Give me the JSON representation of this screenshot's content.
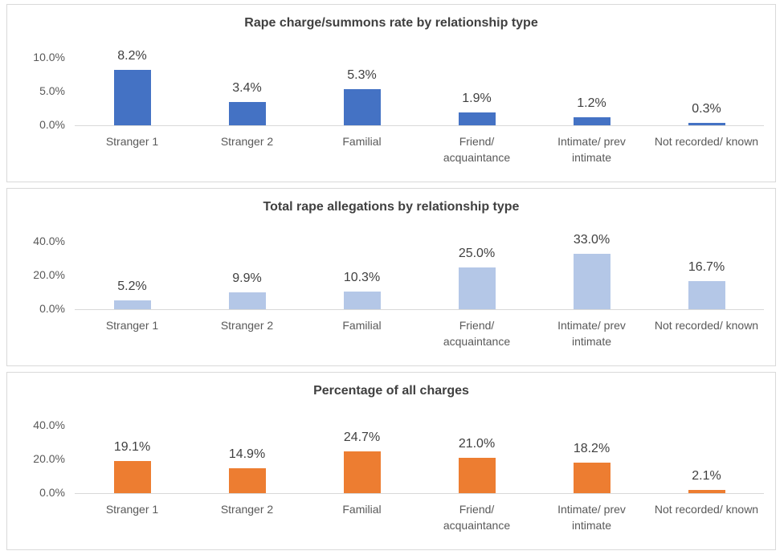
{
  "chart_data": [
    {
      "type": "bar",
      "title": "Rape charge/summons rate by relationship type",
      "categories": [
        "Stranger 1",
        "Stranger 2",
        "Familial",
        "Friend/ acquaintance",
        "Intimate/ prev intimate",
        "Not recorded/ known"
      ],
      "values": [
        8.2,
        3.4,
        5.3,
        1.9,
        1.2,
        0.3
      ],
      "value_labels": [
        "8.2%",
        "3.4%",
        "5.3%",
        "1.9%",
        "1.2%",
        "0.3%"
      ],
      "color": "#4472c4",
      "ylim": [
        0,
        10
      ],
      "yticks": [
        {
          "value": 0,
          "label": "0.0%"
        },
        {
          "value": 5,
          "label": "5.0%"
        },
        {
          "value": 10,
          "label": "10.0%"
        }
      ],
      "grid": false
    },
    {
      "type": "bar",
      "title": "Total rape allegations by relationship type",
      "categories": [
        "Stranger 1",
        "Stranger 2",
        "Familial",
        "Friend/ acquaintance",
        "Intimate/ prev intimate",
        "Not recorded/ known"
      ],
      "values": [
        5.2,
        9.9,
        10.3,
        25.0,
        33.0,
        16.7
      ],
      "value_labels": [
        "5.2%",
        "9.9%",
        "10.3%",
        "25.0%",
        "33.0%",
        "16.7%"
      ],
      "color": "#b4c7e7",
      "ylim": [
        0,
        40
      ],
      "yticks": [
        {
          "value": 0,
          "label": "0.0%"
        },
        {
          "value": 20,
          "label": "20.0%"
        },
        {
          "value": 40,
          "label": "40.0%"
        }
      ],
      "grid": false
    },
    {
      "type": "bar",
      "title": "Percentage of all charges",
      "categories": [
        "Stranger 1",
        "Stranger 2",
        "Familial",
        "Friend/ acquaintance",
        "Intimate/ prev intimate",
        "Not recorded/ known"
      ],
      "values": [
        19.1,
        14.9,
        24.7,
        21.0,
        18.2,
        2.1
      ],
      "value_labels": [
        "19.1%",
        "14.9%",
        "24.7%",
        "21.0%",
        "18.2%",
        "2.1%"
      ],
      "color": "#ed7d31",
      "ylim": [
        0,
        40
      ],
      "yticks": [
        {
          "value": 0,
          "label": "0.0%"
        },
        {
          "value": 20,
          "label": "20.0%"
        },
        {
          "value": 40,
          "label": "40.0%"
        }
      ],
      "grid": false
    }
  ]
}
